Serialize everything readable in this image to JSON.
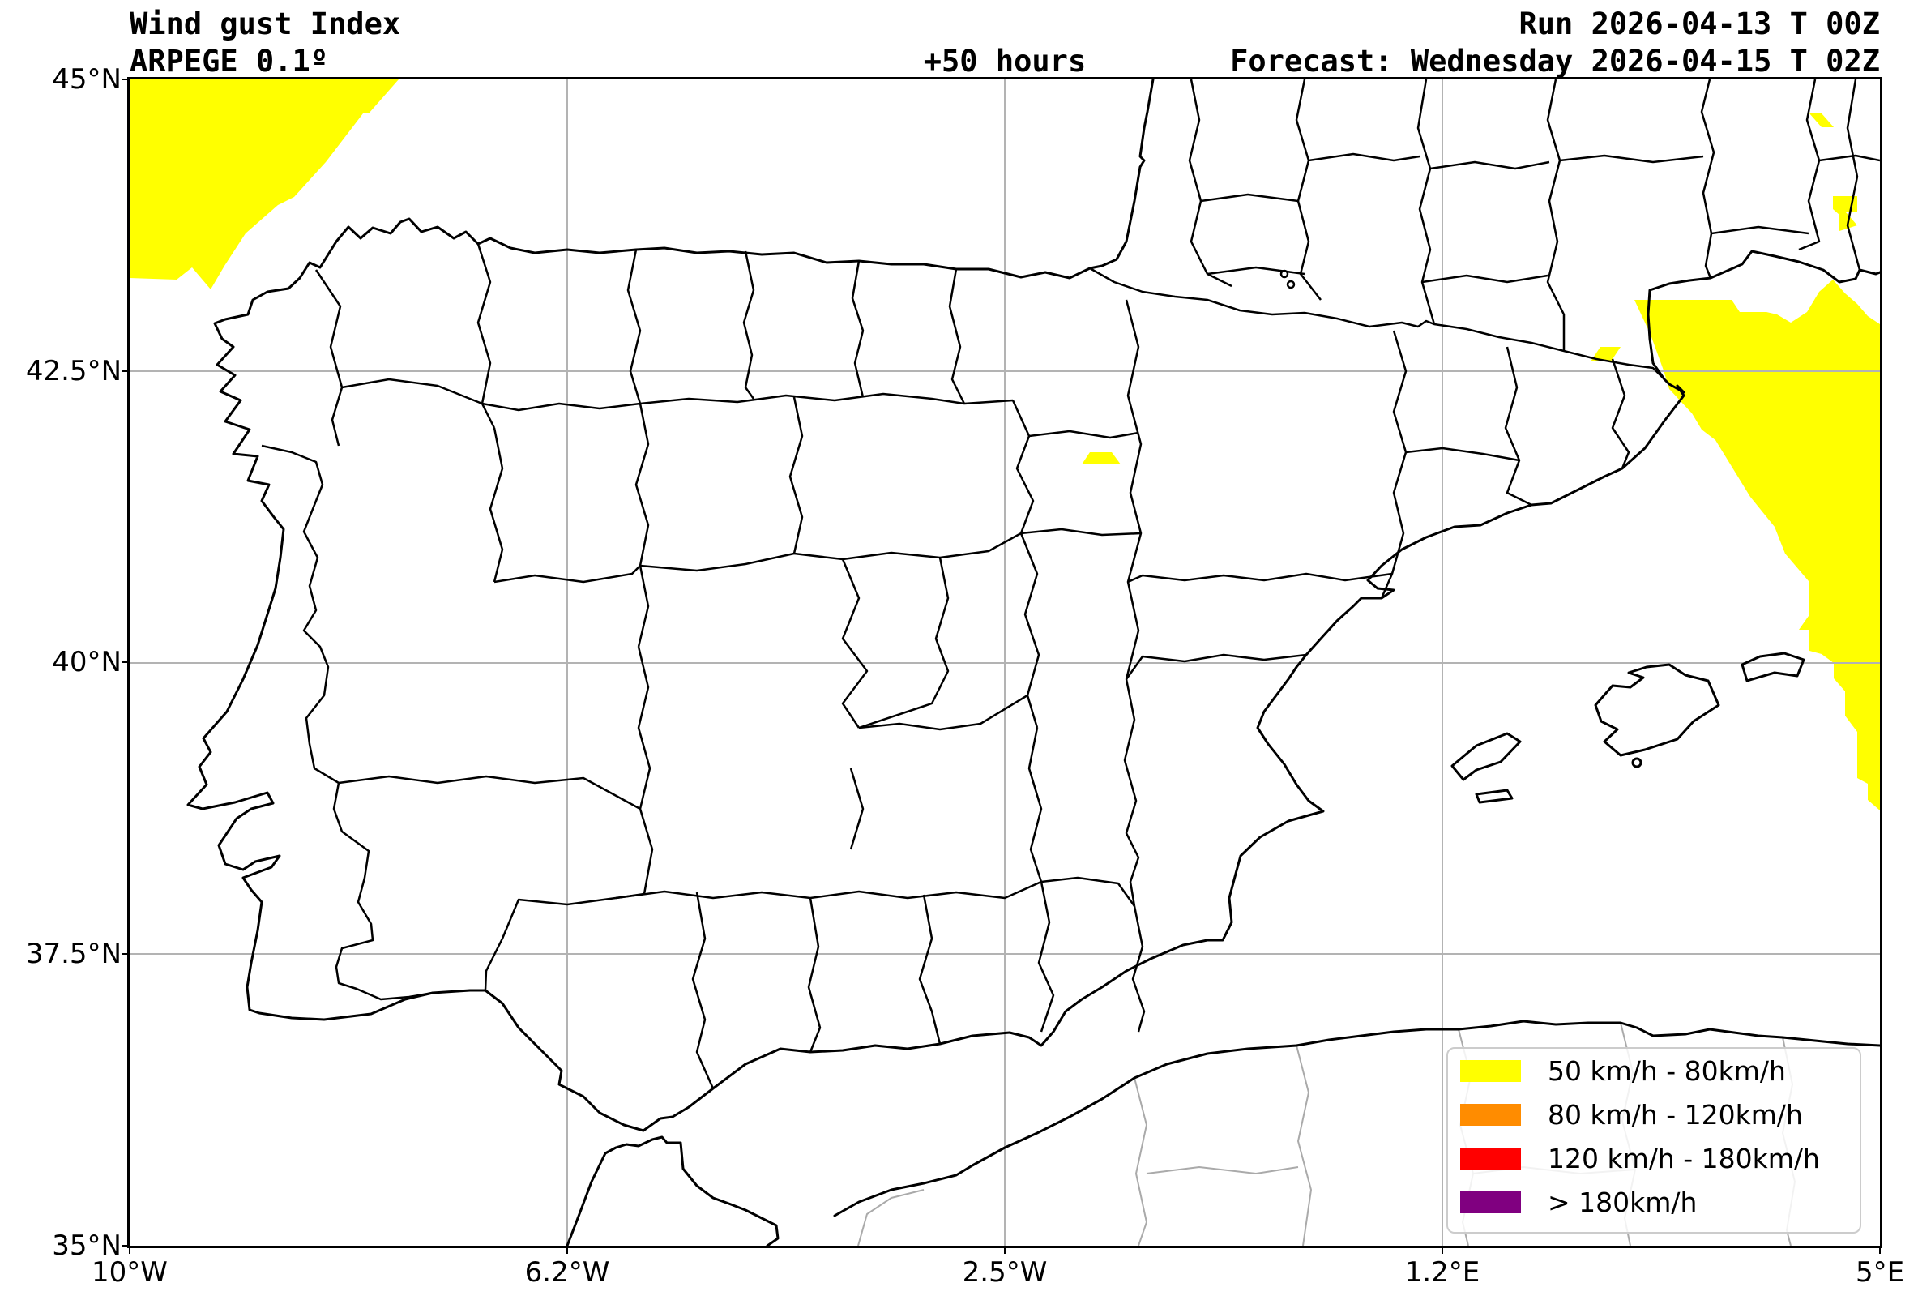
{
  "header": {
    "title_line1": "Wind gust Index",
    "title_line2": "ARPEGE 0.1º",
    "center_label": "+50 hours",
    "run_label": "Run 2026-04-13 T 00Z",
    "forecast_label": "Forecast: Wednesday 2026-04-15 T 02Z"
  },
  "axes": {
    "y_tick_labels": [
      "45°N",
      "42.5°N",
      "40°N",
      "37.5°N",
      "35°N"
    ],
    "x_tick_labels": [
      "10°W",
      "6.2°W",
      "2.5°W",
      "1.2°E",
      "5°E"
    ]
  },
  "legend": {
    "items": [
      {
        "label": "50 km/h - 80km/h",
        "color": "#FFFF00"
      },
      {
        "label": "80 km/h - 120km/h",
        "color": "#FF8C00"
      },
      {
        "label": "120 km/h - 180km/h",
        "color": "#FF0000"
      },
      {
        "label": "> 180km/h",
        "color": "#800080"
      }
    ]
  },
  "map": {
    "grid_color": "#b3b3b3",
    "coast_color": "#000000",
    "foreign_admin_color": "#aaaaaa",
    "wind_areas": [
      {
        "level": "50 km/h - 80km/h",
        "color": "#FFFF00",
        "points": [
          [
            0,
            0
          ],
          [
            332,
            0
          ],
          [
            295,
            42
          ],
          [
            288,
            42
          ],
          [
            242,
            102
          ],
          [
            203,
            145
          ],
          [
            183,
            155
          ],
          [
            143,
            190
          ],
          [
            117,
            230
          ],
          [
            100,
            259
          ],
          [
            77,
            232
          ],
          [
            58,
            247
          ],
          [
            0,
            245
          ]
        ]
      },
      {
        "level": "50 km/h - 80km/h",
        "color": "#FFFF00",
        "points": [
          [
            1857,
            272
          ],
          [
            1977,
            272
          ],
          [
            1987,
            287
          ],
          [
            2020,
            287
          ],
          [
            2033,
            290
          ],
          [
            2050,
            300
          ],
          [
            2070,
            287
          ],
          [
            2085,
            262
          ],
          [
            2102,
            247
          ],
          [
            2117,
            264
          ],
          [
            2132,
            277
          ],
          [
            2145,
            292
          ],
          [
            2160,
            302
          ],
          [
            2160,
            902
          ],
          [
            2145,
            889
          ],
          [
            2145,
            869
          ],
          [
            2132,
            862
          ],
          [
            2132,
            805
          ],
          [
            2117,
            785
          ],
          [
            2117,
            755
          ],
          [
            2103,
            739
          ],
          [
            2103,
            720
          ],
          [
            2088,
            709
          ],
          [
            2073,
            705
          ],
          [
            2073,
            679
          ],
          [
            2060,
            679
          ],
          [
            2072,
            662
          ],
          [
            2072,
            619
          ],
          [
            2043,
            585
          ],
          [
            2030,
            552
          ],
          [
            2000,
            515
          ],
          [
            1957,
            445
          ],
          [
            1940,
            432
          ],
          [
            1928,
            412
          ],
          [
            1900,
            382
          ],
          [
            1893,
            359
          ],
          [
            1877,
            315
          ]
        ]
      },
      {
        "level": "50 km/h - 80km/h",
        "color": "#FFFF00",
        "points": [
          [
            1815,
            330
          ],
          [
            1840,
            330
          ],
          [
            1828,
            348
          ],
          [
            1803,
            348
          ]
        ]
      },
      {
        "level": "50 km/h - 80km/h",
        "color": "#FFFF00",
        "points": [
          [
            1185,
            460
          ],
          [
            1212,
            460
          ],
          [
            1223,
            475
          ],
          [
            1175,
            475
          ]
        ]
      },
      {
        "level": "50 km/h - 80km/h",
        "color": "#FFFF00",
        "points": [
          [
            2073,
            42
          ],
          [
            2088,
            42
          ],
          [
            2103,
            59
          ],
          [
            2088,
            59
          ]
        ]
      },
      {
        "level": "50 km/h - 80km/h",
        "color": "#FFFF00",
        "points": [
          [
            2102,
            144
          ],
          [
            2132,
            144
          ],
          [
            2132,
            164
          ],
          [
            2118,
            164
          ],
          [
            2132,
            180
          ],
          [
            2110,
            187
          ],
          [
            2110,
            167
          ],
          [
            2102,
            160
          ]
        ]
      }
    ]
  }
}
